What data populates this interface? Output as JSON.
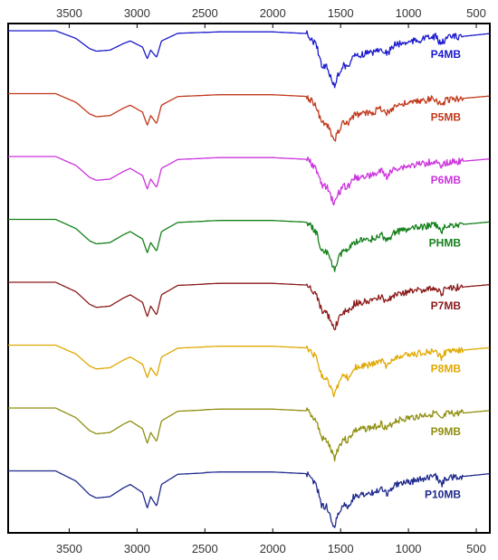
{
  "chart_data": {
    "type": "line",
    "title": "",
    "xlabel": "",
    "ylabel": "",
    "x_axis": {
      "reversed": true,
      "range": [
        3950,
        400
      ],
      "ticks": [
        3500,
        3000,
        2500,
        2000,
        1500,
        1000,
        500
      ],
      "tick_labels": [
        "3500",
        "3000",
        "2500",
        "2000",
        "1500",
        "1000",
        "500"
      ],
      "shown_top_and_bottom": true
    },
    "y_axis": {
      "ticks_shown": false,
      "stacked_offset_traces": true
    },
    "grid": false,
    "legend": "labels placed at right end of each trace",
    "peak_template": [
      [
        3950,
        0
      ],
      [
        3600,
        0
      ],
      [
        3450,
        0.15
      ],
      [
        3350,
        0.35
      ],
      [
        3300,
        0.4
      ],
      [
        3200,
        0.38
      ],
      [
        3100,
        0.25
      ],
      [
        3050,
        0.2
      ],
      [
        2960,
        0.32
      ],
      [
        2925,
        0.55
      ],
      [
        2900,
        0.38
      ],
      [
        2855,
        0.52
      ],
      [
        2820,
        0.2
      ],
      [
        2700,
        0.05
      ],
      [
        2400,
        0.02
      ],
      [
        2000,
        0.02
      ],
      [
        1750,
        0.05
      ],
      [
        1680,
        0.25
      ],
      [
        1640,
        0.6
      ],
      [
        1600,
        0.65
      ],
      [
        1570,
        0.85
      ],
      [
        1545,
        1.0
      ],
      [
        1520,
        0.8
      ],
      [
        1480,
        0.6
      ],
      [
        1450,
        0.65
      ],
      [
        1400,
        0.45
      ],
      [
        1300,
        0.4
      ],
      [
        1250,
        0.38
      ],
      [
        1200,
        0.3
      ],
      [
        1160,
        0.42
      ],
      [
        1100,
        0.25
      ],
      [
        1000,
        0.2
      ],
      [
        900,
        0.15
      ],
      [
        800,
        0.1
      ],
      [
        760,
        0.25
      ],
      [
        720,
        0.12
      ],
      [
        600,
        0.1
      ],
      [
        400,
        0.05
      ]
    ],
    "series": [
      {
        "name": "P4MB",
        "color": "#1a1acc",
        "ch_scale": 0.35,
        "amide_scale": 1.0
      },
      {
        "name": "P5MB",
        "color": "#c0391b",
        "ch_scale": 0.55,
        "amide_scale": 0.85
      },
      {
        "name": "P6MB",
        "color": "#cc33dd",
        "ch_scale": 0.6,
        "amide_scale": 0.85
      },
      {
        "name": "PHMB",
        "color": "#14801a",
        "ch_scale": 0.65,
        "amide_scale": 0.9
      },
      {
        "name": "P7MB",
        "color": "#8b1a1a",
        "ch_scale": 0.7,
        "amide_scale": 0.85
      },
      {
        "name": "P8MB",
        "color": "#e0a800",
        "ch_scale": 0.6,
        "amide_scale": 0.9
      },
      {
        "name": "P9MB",
        "color": "#8f8f10",
        "ch_scale": 0.75,
        "amide_scale": 0.9
      },
      {
        "name": "P10MB",
        "color": "#1f2a8c",
        "ch_scale": 0.85,
        "amide_scale": 1.0
      }
    ]
  }
}
